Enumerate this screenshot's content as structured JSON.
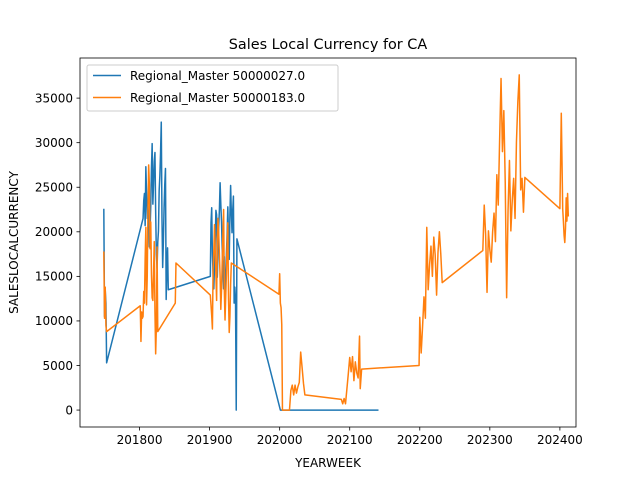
{
  "chart_data": {
    "type": "line",
    "title": "Sales Local Currency for CA",
    "xlabel": "YEARWEEK",
    "ylabel": "SALESLOCALCURRENCY",
    "xlim": [
      201715,
      202423
    ],
    "ylim": [
      -1900,
      39500
    ],
    "x_ticks": [
      201800,
      201900,
      202000,
      202100,
      202200,
      202300,
      202400
    ],
    "y_ticks": [
      0,
      5000,
      10000,
      15000,
      20000,
      25000,
      30000,
      35000
    ],
    "grid": false,
    "legend_position": "upper-left",
    "series": [
      {
        "name": "Regional_Master 50000027.0",
        "color": "#1f77b4",
        "points": [
          [
            201749,
            22500
          ],
          [
            201750,
            10500
          ],
          [
            201751,
            13500
          ],
          [
            201752,
            12000
          ],
          [
            201753,
            5300
          ],
          [
            201805,
            21500
          ],
          [
            201806,
            23500
          ],
          [
            201807,
            24300
          ],
          [
            201808,
            20700
          ],
          [
            201809,
            27300
          ],
          [
            201810,
            24300
          ],
          [
            201811,
            21500
          ],
          [
            201812,
            22900
          ],
          [
            201813,
            21700
          ],
          [
            201814,
            18300
          ],
          [
            201815,
            20200
          ],
          [
            201816,
            22900
          ],
          [
            201817,
            27200
          ],
          [
            201818,
            29900
          ],
          [
            201819,
            23100
          ],
          [
            201820,
            25500
          ],
          [
            201821,
            27900
          ],
          [
            201822,
            28900
          ],
          [
            201823,
            22300
          ],
          [
            201824,
            17500
          ],
          [
            201825,
            15900
          ],
          [
            201826,
            18800
          ],
          [
            201827,
            20100
          ],
          [
            201828,
            24600
          ],
          [
            201829,
            26300
          ],
          [
            201830,
            28900
          ],
          [
            201831,
            32300
          ],
          [
            201832,
            21600
          ],
          [
            201833,
            16000
          ],
          [
            201834,
            18900
          ],
          [
            201835,
            22700
          ],
          [
            201836,
            25300
          ],
          [
            201837,
            27100
          ],
          [
            201838,
            12400
          ],
          [
            201839,
            15900
          ],
          [
            201840,
            18200
          ],
          [
            201841,
            13500
          ],
          [
            201901,
            15000
          ],
          [
            201902,
            21000
          ],
          [
            201903,
            22700
          ],
          [
            201904,
            17400
          ],
          [
            201905,
            15200
          ],
          [
            201906,
            13600
          ],
          [
            201907,
            16200
          ],
          [
            201908,
            19000
          ],
          [
            201909,
            22400
          ],
          [
            201910,
            21900
          ],
          [
            201911,
            14900
          ],
          [
            201912,
            18100
          ],
          [
            201913,
            20600
          ],
          [
            201914,
            22500
          ],
          [
            201915,
            25500
          ],
          [
            201916,
            23100
          ],
          [
            201917,
            21200
          ],
          [
            201918,
            18100
          ],
          [
            201919,
            16200
          ],
          [
            201920,
            13600
          ],
          [
            201921,
            17200
          ],
          [
            201922,
            12200
          ],
          [
            201923,
            14400
          ],
          [
            201924,
            17500
          ],
          [
            201925,
            19800
          ],
          [
            201926,
            22800
          ],
          [
            201927,
            19300
          ],
          [
            201928,
            16900
          ],
          [
            201929,
            21900
          ],
          [
            201930,
            25200
          ],
          [
            201931,
            22200
          ],
          [
            201932,
            19900
          ],
          [
            201933,
            22400
          ],
          [
            201934,
            24000
          ],
          [
            201935,
            12000
          ],
          [
            201936,
            13800
          ],
          [
            201937,
            12200
          ],
          [
            201938,
            0
          ],
          [
            201939,
            19200
          ],
          [
            202001,
            0
          ],
          [
            202010,
            0
          ],
          [
            202020,
            0
          ],
          [
            202040,
            0
          ],
          [
            202060,
            0
          ],
          [
            202080,
            0
          ],
          [
            202100,
            0
          ],
          [
            202120,
            0
          ],
          [
            202140,
            0
          ]
        ]
      },
      {
        "name": "Regional_Master 50000183.0",
        "color": "#ff7f0e",
        "points": [
          [
            201749,
            17700
          ],
          [
            201750,
            10300
          ],
          [
            201751,
            13800
          ],
          [
            201752,
            9500
          ],
          [
            201753,
            8800
          ],
          [
            201801,
            11700
          ],
          [
            201802,
            7700
          ],
          [
            201803,
            11000
          ],
          [
            201804,
            10300
          ],
          [
            201805,
            10500
          ],
          [
            201806,
            13300
          ],
          [
            201807,
            12000
          ],
          [
            201808,
            17000
          ],
          [
            201809,
            20500
          ],
          [
            201810,
            11800
          ],
          [
            201811,
            15000
          ],
          [
            201812,
            22300
          ],
          [
            201813,
            27500
          ],
          [
            201814,
            25300
          ],
          [
            201815,
            18100
          ],
          [
            201816,
            21100
          ],
          [
            201817,
            15200
          ],
          [
            201818,
            12600
          ],
          [
            201819,
            12300
          ],
          [
            201820,
            15500
          ],
          [
            201821,
            18900
          ],
          [
            201822,
            11000
          ],
          [
            201823,
            6300
          ],
          [
            201824,
            9300
          ],
          [
            201825,
            18300
          ],
          [
            201826,
            8800
          ],
          [
            201851,
            12000
          ],
          [
            201852,
            16500
          ],
          [
            201901,
            12900
          ],
          [
            201902,
            11800
          ],
          [
            201903,
            10600
          ],
          [
            201904,
            9100
          ],
          [
            201905,
            15900
          ],
          [
            201906,
            17800
          ],
          [
            201907,
            20800
          ],
          [
            201908,
            17900
          ],
          [
            201909,
            15100
          ],
          [
            201910,
            12300
          ],
          [
            201911,
            19200
          ],
          [
            201912,
            21500
          ],
          [
            201913,
            19800
          ],
          [
            201914,
            17300
          ],
          [
            201915,
            15000
          ],
          [
            201916,
            11300
          ],
          [
            201917,
            13400
          ],
          [
            201918,
            16600
          ],
          [
            201919,
            19800
          ],
          [
            201920,
            22500
          ],
          [
            201921,
            13400
          ],
          [
            201922,
            10100
          ],
          [
            201923,
            12700
          ],
          [
            201924,
            15300
          ],
          [
            201925,
            18500
          ],
          [
            201926,
            21000
          ],
          [
            201927,
            12500
          ],
          [
            201928,
            8700
          ],
          [
            201929,
            10500
          ],
          [
            201930,
            14100
          ],
          [
            201931,
            16500
          ],
          [
            201999,
            13000
          ],
          [
            202000,
            15300
          ],
          [
            202001,
            12000
          ],
          [
            202002,
            11500
          ],
          [
            202003,
            9600
          ],
          [
            202004,
            0
          ],
          [
            202005,
            0
          ],
          [
            202008,
            0
          ],
          [
            202010,
            0
          ],
          [
            202014,
            0
          ],
          [
            202016,
            2200
          ],
          [
            202018,
            2800
          ],
          [
            202020,
            1700
          ],
          [
            202022,
            2800
          ],
          [
            202024,
            1900
          ],
          [
            202026,
            2600
          ],
          [
            202028,
            3100
          ],
          [
            202030,
            6500
          ],
          [
            202032,
            4800
          ],
          [
            202034,
            3000
          ],
          [
            202036,
            1700
          ],
          [
            202088,
            1200
          ],
          [
            202090,
            700
          ],
          [
            202092,
            1300
          ],
          [
            202094,
            700
          ],
          [
            202096,
            2400
          ],
          [
            202098,
            4100
          ],
          [
            202100,
            5900
          ],
          [
            202102,
            4300
          ],
          [
            202104,
            6000
          ],
          [
            202106,
            3300
          ],
          [
            202108,
            5400
          ],
          [
            202110,
            4200
          ],
          [
            202112,
            3600
          ],
          [
            202114,
            8300
          ],
          [
            202115,
            2400
          ],
          [
            202117,
            4600
          ],
          [
            202199,
            5000
          ],
          [
            202200,
            10400
          ],
          [
            202202,
            6400
          ],
          [
            202204,
            9400
          ],
          [
            202206,
            12700
          ],
          [
            202208,
            10300
          ],
          [
            202210,
            20500
          ],
          [
            202212,
            13500
          ],
          [
            202214,
            16300
          ],
          [
            202216,
            18400
          ],
          [
            202218,
            15000
          ],
          [
            202220,
            19400
          ],
          [
            202222,
            17400
          ],
          [
            202224,
            12900
          ],
          [
            202226,
            17700
          ],
          [
            202228,
            20000
          ],
          [
            202230,
            17500
          ],
          [
            202232,
            14300
          ],
          [
            202290,
            17900
          ],
          [
            202292,
            23000
          ],
          [
            202294,
            19700
          ],
          [
            202296,
            13200
          ],
          [
            202298,
            20100
          ],
          [
            202300,
            18000
          ],
          [
            202302,
            16600
          ],
          [
            202304,
            20000
          ],
          [
            202306,
            22100
          ],
          [
            202308,
            18900
          ],
          [
            202310,
            26400
          ],
          [
            202312,
            23000
          ],
          [
            202314,
            30400
          ],
          [
            202316,
            37200
          ],
          [
            202318,
            29000
          ],
          [
            202320,
            33600
          ],
          [
            202322,
            25500
          ],
          [
            202324,
            12600
          ],
          [
            202326,
            22400
          ],
          [
            202328,
            28000
          ],
          [
            202330,
            20100
          ],
          [
            202332,
            23500
          ],
          [
            202334,
            26000
          ],
          [
            202336,
            21500
          ],
          [
            202338,
            30100
          ],
          [
            202340,
            34600
          ],
          [
            202342,
            37600
          ],
          [
            202344,
            24700
          ],
          [
            202346,
            26000
          ],
          [
            202348,
            22200
          ],
          [
            202350,
            26100
          ],
          [
            202400,
            22600
          ],
          [
            202402,
            33300
          ],
          [
            202403,
            28000
          ],
          [
            202404,
            22600
          ],
          [
            202405,
            21200
          ],
          [
            202406,
            19600
          ],
          [
            202407,
            18800
          ],
          [
            202408,
            20400
          ],
          [
            202409,
            23800
          ],
          [
            202410,
            21200
          ],
          [
            202411,
            24300
          ],
          [
            202412,
            21800
          ]
        ]
      }
    ]
  }
}
